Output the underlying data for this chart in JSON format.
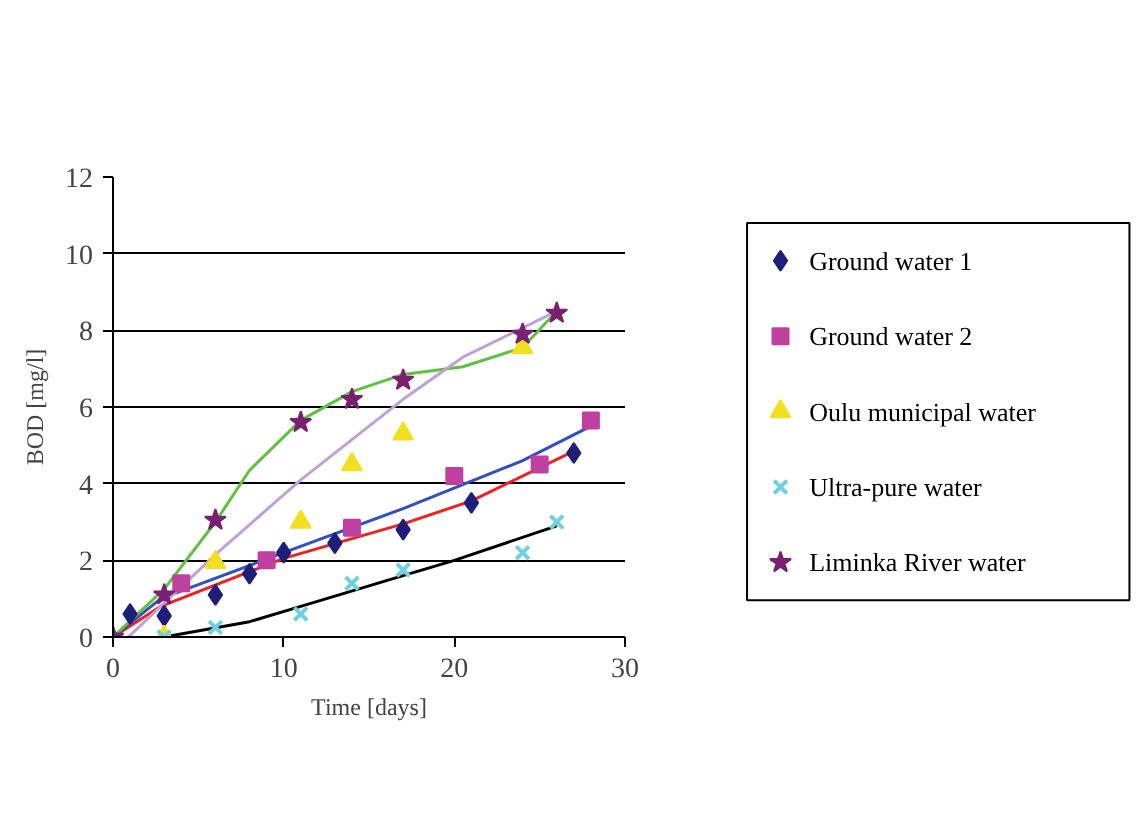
{
  "chart_data": {
    "type": "scatter",
    "xlabel": "Time [days]",
    "ylabel": "BOD [mg/l]",
    "xlim": [
      0,
      30
    ],
    "ylim": [
      0,
      12
    ],
    "xticks": [
      0,
      10,
      20,
      30
    ],
    "yticks": [
      0,
      2,
      4,
      6,
      8,
      10,
      12
    ],
    "grid": "y",
    "legend": "right",
    "series": [
      {
        "name": "Ground water 1",
        "color": "#1f1f7a",
        "marker": "diamond",
        "x": [
          1,
          3,
          6,
          8,
          10,
          13,
          17,
          21,
          27
        ],
        "values": [
          0.6,
          0.55,
          1.1,
          1.65,
          2.2,
          2.45,
          2.8,
          3.5,
          4.8
        ]
      },
      {
        "name": "Ground water 2",
        "color": "#c040a0",
        "marker": "square",
        "x": [
          4,
          9,
          14,
          20,
          25,
          28
        ],
        "values": [
          1.4,
          2.0,
          2.85,
          4.2,
          4.5,
          5.65
        ]
      },
      {
        "name": "Oulu municipal water",
        "color": "#f0e020",
        "marker": "triangle",
        "x": [
          3,
          6,
          11,
          14,
          17,
          24
        ],
        "values": [
          0,
          1.95,
          3.0,
          4.5,
          5.3,
          7.55
        ]
      },
      {
        "name": "Ultra-pure water",
        "color": "#70d0e0",
        "marker": "cross",
        "x": [
          3,
          6,
          11,
          14,
          17,
          24,
          26
        ],
        "values": [
          0,
          0.25,
          0.6,
          1.4,
          1.75,
          2.2,
          3.0
        ]
      },
      {
        "name": "Liminka River water",
        "color": "#7a2070",
        "marker": "star",
        "x": [
          0,
          3,
          6,
          11,
          14,
          17,
          24,
          26
        ],
        "values": [
          0,
          1.1,
          3.05,
          5.6,
          6.2,
          6.7,
          7.9,
          8.45
        ]
      },
      {
        "type": "line",
        "color": "#f02020",
        "x": [
          0,
          2.8,
          10,
          17,
          21,
          27
        ],
        "values": [
          0,
          0.8,
          2.05,
          2.95,
          3.55,
          4.85
        ]
      },
      {
        "type": "line",
        "color": "#3050c0",
        "x": [
          0,
          2.8,
          10,
          17,
          24,
          28
        ],
        "values": [
          0,
          1.0,
          2.2,
          3.35,
          4.6,
          5.5
        ]
      },
      {
        "type": "line",
        "color": "#60c040",
        "x": [
          0,
          3,
          6,
          8,
          11,
          14,
          17,
          20.5,
          24,
          26
        ],
        "values": [
          0,
          1.25,
          3.0,
          4.35,
          5.65,
          6.4,
          6.85,
          7.05,
          7.55,
          8.5
        ]
      },
      {
        "type": "line",
        "color": "#c0a0d8",
        "x": [
          0.9,
          6,
          11,
          14,
          17,
          20.5,
          26
        ],
        "values": [
          0,
          2.15,
          4.1,
          5.15,
          6.2,
          7.3,
          8.5
        ]
      },
      {
        "type": "line",
        "color": "#000000",
        "x": [
          3,
          8,
          11,
          17,
          20,
          26
        ],
        "values": [
          0,
          0.4,
          0.8,
          1.6,
          2.0,
          2.9
        ]
      }
    ]
  }
}
